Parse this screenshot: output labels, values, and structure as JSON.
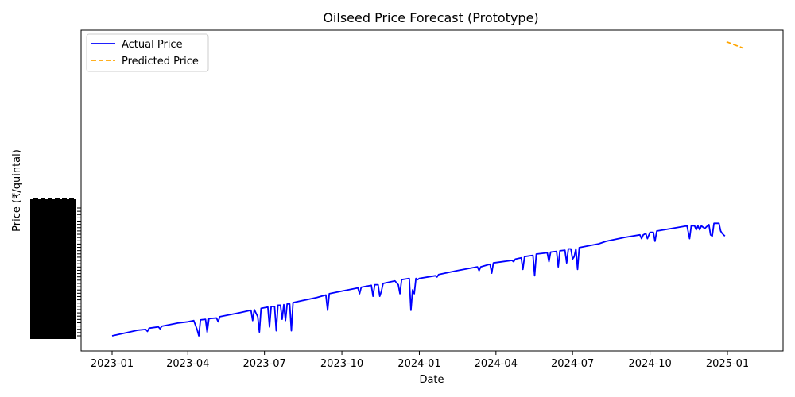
{
  "chart_data": {
    "type": "line",
    "title": "Oilseed Price Forecast (Prototype)",
    "xlabel": "Date",
    "ylabel": "Price (₹/quintal)",
    "x_ticks": [
      "2023-01",
      "2023-04",
      "2023-07",
      "2023-10",
      "2024-01",
      "2024-04",
      "2024-07",
      "2024-10",
      "2025-01"
    ],
    "y_ticks_note": "Dense overlapping categorical tick labels (illegible) on the y-axis",
    "y_scale": "categorical",
    "legend_position": "top-left",
    "grid": false,
    "colors": {
      "actual": "#0000ff",
      "predicted": "#ffa500"
    },
    "series": [
      {
        "name": "Actual Price",
        "style": "solid",
        "color": "#0000ff",
        "points": [
          [
            "2023-01-01",
            0.0
          ],
          [
            "2023-01-15",
            0.02
          ],
          [
            "2023-02-01",
            0.045
          ],
          [
            "2023-02-10",
            0.05
          ],
          [
            "2023-02-12",
            0.035
          ],
          [
            "2023-02-14",
            0.06
          ],
          [
            "2023-02-25",
            0.07
          ],
          [
            "2023-02-27",
            0.055
          ],
          [
            "2023-03-01",
            0.075
          ],
          [
            "2023-03-20",
            0.1
          ],
          [
            "2023-04-01",
            0.11
          ],
          [
            "2023-04-08",
            0.12
          ],
          [
            "2023-04-12",
            0.05
          ],
          [
            "2023-04-14",
            0.0
          ],
          [
            "2023-04-16",
            0.125
          ],
          [
            "2023-04-22",
            0.13
          ],
          [
            "2023-04-24",
            0.03
          ],
          [
            "2023-04-26",
            0.135
          ],
          [
            "2023-05-05",
            0.14
          ],
          [
            "2023-05-07",
            0.11
          ],
          [
            "2023-05-09",
            0.15
          ],
          [
            "2023-06-01",
            0.18
          ],
          [
            "2023-06-15",
            0.2
          ],
          [
            "2023-06-17",
            0.12
          ],
          [
            "2023-06-19",
            0.205
          ],
          [
            "2023-06-23",
            0.15
          ],
          [
            "2023-06-25",
            0.03
          ],
          [
            "2023-06-27",
            0.215
          ],
          [
            "2023-07-05",
            0.225
          ],
          [
            "2023-07-07",
            0.07
          ],
          [
            "2023-07-09",
            0.23
          ],
          [
            "2023-07-13",
            0.23
          ],
          [
            "2023-07-15",
            0.04
          ],
          [
            "2023-07-17",
            0.24
          ],
          [
            "2023-07-20",
            0.24
          ],
          [
            "2023-07-22",
            0.13
          ],
          [
            "2023-07-24",
            0.245
          ],
          [
            "2023-07-26",
            0.12
          ],
          [
            "2023-07-28",
            0.25
          ],
          [
            "2023-07-31",
            0.25
          ],
          [
            "2023-08-02",
            0.04
          ],
          [
            "2023-08-04",
            0.26
          ],
          [
            "2023-09-01",
            0.3
          ],
          [
            "2023-09-12",
            0.32
          ],
          [
            "2023-09-14",
            0.2
          ],
          [
            "2023-09-16",
            0.33
          ],
          [
            "2023-10-01",
            0.35
          ],
          [
            "2023-10-20",
            0.375
          ],
          [
            "2023-10-22",
            0.33
          ],
          [
            "2023-10-24",
            0.38
          ],
          [
            "2023-11-05",
            0.395
          ],
          [
            "2023-11-07",
            0.31
          ],
          [
            "2023-11-09",
            0.4
          ],
          [
            "2023-11-13",
            0.4
          ],
          [
            "2023-11-15",
            0.31
          ],
          [
            "2023-11-17",
            0.35
          ],
          [
            "2023-11-19",
            0.41
          ],
          [
            "2023-12-03",
            0.43
          ],
          [
            "2023-12-07",
            0.4
          ],
          [
            "2023-12-09",
            0.33
          ],
          [
            "2023-12-11",
            0.44
          ],
          [
            "2023-12-20",
            0.45
          ],
          [
            "2023-12-22",
            0.2
          ],
          [
            "2023-12-24",
            0.36
          ],
          [
            "2023-12-26",
            0.33
          ],
          [
            "2023-12-28",
            0.45
          ],
          [
            "2023-12-30",
            0.44
          ],
          [
            "2024-01-01",
            0.45
          ],
          [
            "2024-01-20",
            0.47
          ],
          [
            "2024-01-22",
            0.46
          ],
          [
            "2024-01-24",
            0.48
          ],
          [
            "2024-02-15",
            0.51
          ],
          [
            "2024-03-10",
            0.54
          ],
          [
            "2024-03-12",
            0.51
          ],
          [
            "2024-03-14",
            0.54
          ],
          [
            "2024-03-25",
            0.56
          ],
          [
            "2024-03-27",
            0.49
          ],
          [
            "2024-03-29",
            0.57
          ],
          [
            "2024-04-20",
            0.59
          ],
          [
            "2024-04-22",
            0.58
          ],
          [
            "2024-04-24",
            0.6
          ],
          [
            "2024-05-01",
            0.61
          ],
          [
            "2024-05-03",
            0.52
          ],
          [
            "2024-05-05",
            0.62
          ],
          [
            "2024-05-15",
            0.63
          ],
          [
            "2024-05-17",
            0.47
          ],
          [
            "2024-05-19",
            0.64
          ],
          [
            "2024-06-01",
            0.65
          ],
          [
            "2024-06-03",
            0.58
          ],
          [
            "2024-06-05",
            0.655
          ],
          [
            "2024-06-12",
            0.66
          ],
          [
            "2024-06-14",
            0.54
          ],
          [
            "2024-06-16",
            0.665
          ],
          [
            "2024-06-22",
            0.67
          ],
          [
            "2024-06-24",
            0.57
          ],
          [
            "2024-06-26",
            0.68
          ],
          [
            "2024-06-29",
            0.68
          ],
          [
            "2024-07-01",
            0.6
          ],
          [
            "2024-07-03",
            0.62
          ],
          [
            "2024-07-05",
            0.68
          ],
          [
            "2024-07-07",
            0.52
          ],
          [
            "2024-07-09",
            0.69
          ],
          [
            "2024-08-01",
            0.72
          ],
          [
            "2024-08-10",
            0.74
          ],
          [
            "2024-09-01",
            0.77
          ],
          [
            "2024-09-19",
            0.79
          ],
          [
            "2024-09-21",
            0.76
          ],
          [
            "2024-09-23",
            0.79
          ],
          [
            "2024-09-26",
            0.8
          ],
          [
            "2024-09-28",
            0.76
          ],
          [
            "2024-10-01",
            0.81
          ],
          [
            "2024-10-05",
            0.81
          ],
          [
            "2024-10-07",
            0.74
          ],
          [
            "2024-10-09",
            0.82
          ],
          [
            "2024-11-14",
            0.86
          ],
          [
            "2024-11-17",
            0.76
          ],
          [
            "2024-11-19",
            0.86
          ],
          [
            "2024-11-23",
            0.86
          ],
          [
            "2024-11-25",
            0.83
          ],
          [
            "2024-11-27",
            0.86
          ],
          [
            "2024-11-29",
            0.83
          ],
          [
            "2024-12-01",
            0.86
          ],
          [
            "2024-12-05",
            0.84
          ],
          [
            "2024-12-10",
            0.87
          ],
          [
            "2024-12-12",
            0.79
          ],
          [
            "2024-12-14",
            0.78
          ],
          [
            "2024-12-16",
            0.88
          ],
          [
            "2024-12-22",
            0.88
          ],
          [
            "2024-12-24",
            0.82
          ],
          [
            "2024-12-26",
            0.8
          ],
          [
            "2024-12-29",
            0.78
          ]
        ]
      },
      {
        "name": "Predicted Price",
        "style": "dashed",
        "color": "#ffa500",
        "points": [
          [
            "2024-12-31",
            2.3
          ],
          [
            "2025-01-20",
            2.25
          ]
        ]
      }
    ]
  }
}
